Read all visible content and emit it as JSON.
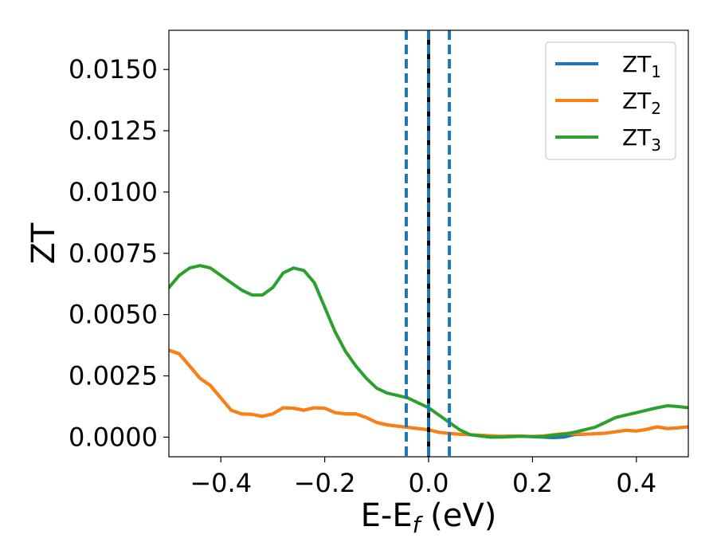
{
  "chart_data": {
    "type": "line",
    "xlabel": "E-E",
    "xlabel_sub": "f",
    "xlabel_unit": "(eV)",
    "ylabel": "ZT",
    "xlim": [
      -0.5,
      0.5
    ],
    "ylim": [
      -0.0008,
      0.0166
    ],
    "xticks": [
      -0.4,
      -0.2,
      0.0,
      0.2,
      0.4
    ],
    "xtick_labels": [
      "−0.4",
      "−0.2",
      "0.0",
      "0.2",
      "0.4"
    ],
    "yticks": [
      0.0,
      0.0025,
      0.005,
      0.0075,
      0.01,
      0.0125,
      0.015
    ],
    "ytick_labels": [
      "0.0000",
      "0.0025",
      "0.0050",
      "0.0075",
      "0.0100",
      "0.0125",
      "0.0150"
    ],
    "grid": false,
    "legend_position": "top-right",
    "vlines": [
      {
        "x": 0.0,
        "color": "#000000",
        "style": "solid"
      },
      {
        "x": 0.0,
        "color": "#1f77b4",
        "style": "dashed"
      },
      {
        "x": -0.043,
        "color": "#1f77b4",
        "style": "dashed"
      },
      {
        "x": 0.04,
        "color": "#1f77b4",
        "style": "dashed"
      }
    ],
    "series": [
      {
        "name": "ZT",
        "sub": "1",
        "color": "#1f77b4",
        "x": [
          -0.5,
          -0.48,
          -0.46,
          -0.44,
          -0.42,
          -0.4,
          -0.38,
          -0.36,
          -0.34,
          -0.32,
          -0.3,
          -0.28,
          -0.26,
          -0.24,
          -0.22,
          -0.2,
          -0.18,
          -0.16,
          -0.14,
          -0.12,
          -0.1,
          -0.08,
          -0.06,
          -0.04,
          -0.02,
          0.0,
          0.02,
          0.04,
          0.06,
          0.08,
          0.1,
          0.12,
          0.14,
          0.16,
          0.18,
          0.2,
          0.22,
          0.24,
          0.26,
          0.28,
          0.3,
          0.32,
          0.34,
          0.36,
          0.38,
          0.4,
          0.42,
          0.44,
          0.46,
          0.48,
          0.5
        ],
        "y": [
          0.00355,
          0.0034,
          0.0029,
          0.0024,
          0.0021,
          0.0016,
          0.0011,
          0.00095,
          0.00093,
          0.00085,
          0.00095,
          0.0012,
          0.00118,
          0.0011,
          0.0012,
          0.00118,
          0.001,
          0.00095,
          0.00095,
          0.0008,
          0.0006,
          0.0005,
          0.00045,
          0.0004,
          0.00035,
          0.0003,
          0.0002,
          0.00015,
          0.00012,
          0.0001,
          5e-05,
          0.0,
          2e-05,
          5e-05,
          4e-05,
          2e-05,
          0.0,
          -2e-05,
          0.0,
          0.0001,
          0.00012,
          0.00014,
          0.00016,
          0.00022,
          0.00028,
          0.00025,
          0.00032,
          0.00042,
          0.00035,
          0.00038,
          0.00042
        ]
      },
      {
        "name": "ZT",
        "sub": "2",
        "color": "#ff7f0e",
        "x": [
          -0.5,
          -0.48,
          -0.46,
          -0.44,
          -0.42,
          -0.4,
          -0.38,
          -0.36,
          -0.34,
          -0.32,
          -0.3,
          -0.28,
          -0.26,
          -0.24,
          -0.22,
          -0.2,
          -0.18,
          -0.16,
          -0.14,
          -0.12,
          -0.1,
          -0.08,
          -0.06,
          -0.04,
          -0.02,
          0.0,
          0.02,
          0.04,
          0.06,
          0.08,
          0.1,
          0.12,
          0.14,
          0.16,
          0.18,
          0.2,
          0.22,
          0.24,
          0.26,
          0.28,
          0.3,
          0.32,
          0.34,
          0.36,
          0.38,
          0.4,
          0.42,
          0.44,
          0.46,
          0.48,
          0.5
        ],
        "y": [
          0.00355,
          0.0034,
          0.0029,
          0.0024,
          0.0021,
          0.0016,
          0.0011,
          0.00095,
          0.00093,
          0.00085,
          0.00095,
          0.0012,
          0.00118,
          0.0011,
          0.0012,
          0.00118,
          0.001,
          0.00095,
          0.00095,
          0.0008,
          0.0006,
          0.0005,
          0.00045,
          0.0004,
          0.00035,
          0.0003,
          0.0002,
          0.00015,
          0.00012,
          0.0001,
          8e-05,
          6e-05,
          4e-05,
          5e-05,
          4e-05,
          3e-05,
          5e-05,
          0.0001,
          0.00015,
          0.00013,
          0.00012,
          0.00014,
          0.00016,
          0.00022,
          0.00028,
          0.00025,
          0.00032,
          0.00042,
          0.00035,
          0.00038,
          0.00042
        ]
      },
      {
        "name": "ZT",
        "sub": "3",
        "color": "#2ca02c",
        "x": [
          -0.5,
          -0.48,
          -0.46,
          -0.44,
          -0.42,
          -0.4,
          -0.38,
          -0.36,
          -0.34,
          -0.32,
          -0.3,
          -0.28,
          -0.26,
          -0.24,
          -0.22,
          -0.2,
          -0.18,
          -0.16,
          -0.14,
          -0.12,
          -0.1,
          -0.08,
          -0.06,
          -0.04,
          -0.02,
          0.0,
          0.02,
          0.04,
          0.06,
          0.08,
          0.1,
          0.12,
          0.14,
          0.16,
          0.18,
          0.2,
          0.22,
          0.24,
          0.26,
          0.28,
          0.3,
          0.32,
          0.34,
          0.36,
          0.38,
          0.4,
          0.42,
          0.44,
          0.46,
          0.48,
          0.5
        ],
        "y": [
          0.0061,
          0.0066,
          0.0069,
          0.007,
          0.0069,
          0.0066,
          0.0063,
          0.006,
          0.0058,
          0.0058,
          0.0061,
          0.0067,
          0.0069,
          0.0068,
          0.0063,
          0.0053,
          0.0043,
          0.0035,
          0.0029,
          0.0024,
          0.002,
          0.0018,
          0.0017,
          0.0016,
          0.0014,
          0.0012,
          0.0009,
          0.0006,
          0.0003,
          0.0001,
          5e-05,
          0.0,
          0.0,
          2e-05,
          4e-05,
          2e-05,
          2e-05,
          8e-05,
          0.00012,
          0.0002,
          0.0003,
          0.0004,
          0.0006,
          0.0008,
          0.0009,
          0.001,
          0.0011,
          0.0012,
          0.00128,
          0.00125,
          0.0012
        ]
      }
    ]
  }
}
